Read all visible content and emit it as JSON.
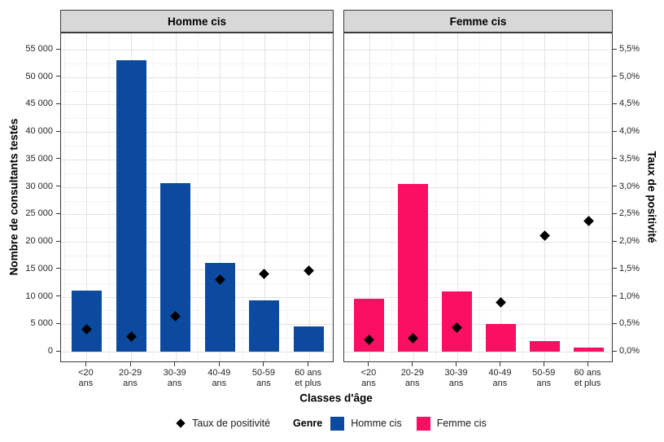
{
  "legend": {
    "taux_label": "Taux de positivité",
    "genre_title": "Genre",
    "homme_label": "Homme cis",
    "femme_label": "Femme cis"
  },
  "colors": {
    "homme": "#0B4A9E",
    "femme": "#FA0F62",
    "diamond": "#000000",
    "strip_bg": "#D8D8D8",
    "panel_border": "#3C3C3C",
    "grid_major": "#E3E3E3",
    "grid_minor": "#F3F3F3"
  },
  "chart_data": {
    "type": "bar",
    "title": "",
    "xlabel": "Classes d'âge",
    "ylabel_left": "Nombre de consultants testés",
    "ylabel_right": "Taux de positivité",
    "legend_position": "bottom",
    "grid": "on",
    "categories": [
      "<20 ans",
      "20-29 ans",
      "30-39 ans",
      "40-49 ans",
      "50-59 ans",
      "60 ans et plus"
    ],
    "x_tick_lines": [
      [
        "<20",
        "ans"
      ],
      [
        "20-29",
        "ans"
      ],
      [
        "30-39",
        "ans"
      ],
      [
        "40-49",
        "ans"
      ],
      [
        "50-59",
        "ans"
      ],
      [
        "60 ans",
        "et plus"
      ]
    ],
    "facets": [
      {
        "label": "Homme cis",
        "color_key": "homme",
        "tested": [
          11100,
          53100,
          30700,
          16200,
          9400,
          4600
        ],
        "taux_pct": [
          0.41,
          0.27,
          0.65,
          1.31,
          1.41,
          1.48
        ]
      },
      {
        "label": "Femme cis",
        "color_key": "femme",
        "tested": [
          9600,
          30600,
          10900,
          5100,
          1900,
          700
        ],
        "taux_pct": [
          0.21,
          0.25,
          0.44,
          0.9,
          2.11,
          2.38
        ]
      }
    ],
    "y_left": {
      "min": 0,
      "max": 55000,
      "step": 5000,
      "tick_labels": [
        "0",
        "5 000",
        "10 000",
        "15 000",
        "20 000",
        "25 000",
        "30 000",
        "35 000",
        "40 000",
        "45 000",
        "50 000",
        "55 000"
      ]
    },
    "y_right": {
      "min": 0,
      "max": 5.5,
      "step": 0.5,
      "tick_labels": [
        "0,0%",
        "0,5%",
        "1,0%",
        "1,5%",
        "2,0%",
        "2,5%",
        "3,0%",
        "3,5%",
        "4,0%",
        "4,5%",
        "5,0%",
        "5,5%"
      ]
    }
  }
}
